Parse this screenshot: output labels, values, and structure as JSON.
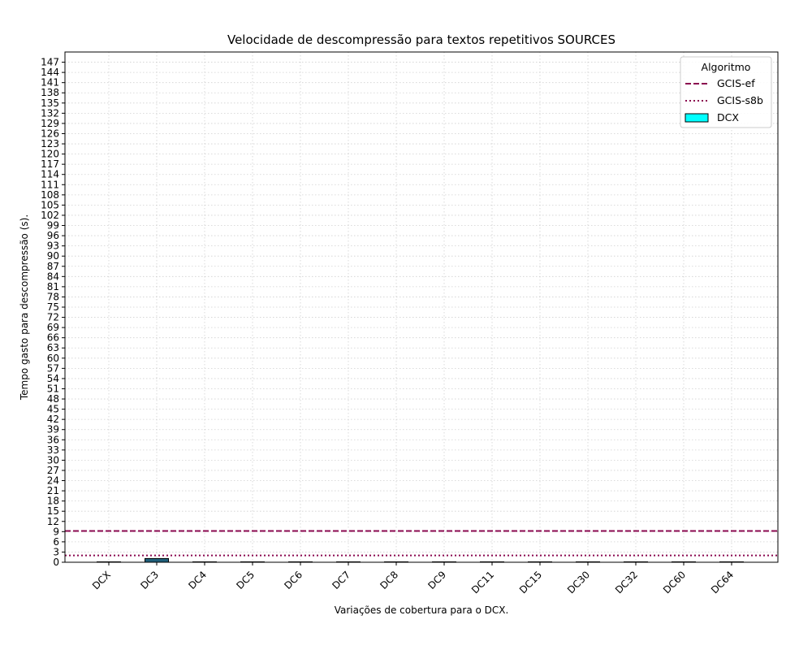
{
  "chart_data": {
    "type": "bar",
    "title": "Velocidade de descompressão para textos repetitivos SOURCES",
    "xlabel": "Variações de cobertura para o DCX.",
    "ylabel": "Tempo gasto para descompressão (s).",
    "categories": [
      "DCX",
      "DC3",
      "DC4",
      "DC5",
      "DC6",
      "DC7",
      "DC8",
      "DC9",
      "DC11",
      "DC15",
      "DC30",
      "DC32",
      "DC60",
      "DC64"
    ],
    "series": [
      {
        "name": "DCX",
        "color": "#00ffff",
        "values": [
          0.05,
          1.1,
          0.05,
          0.05,
          0.05,
          0.05,
          0.05,
          0.05,
          0.05,
          0.05,
          0.05,
          0.05,
          0.05,
          0.05
        ]
      }
    ],
    "reference_lines": [
      {
        "name": "GCIS-ef",
        "value": 9.2,
        "color": "#8b0a50",
        "style": "dashed"
      },
      {
        "name": "GCIS-s8b",
        "value": 2.0,
        "color": "#8b0a50",
        "style": "dotted"
      }
    ],
    "ylim": [
      0,
      150
    ],
    "yticks": [
      0,
      3,
      6,
      9,
      12,
      15,
      18,
      21,
      24,
      27,
      30,
      33,
      36,
      39,
      42,
      45,
      48,
      51,
      54,
      57,
      60,
      63,
      66,
      69,
      72,
      75,
      78,
      81,
      84,
      87,
      90,
      93,
      96,
      99,
      102,
      105,
      108,
      111,
      114,
      117,
      120,
      123,
      126,
      129,
      132,
      135,
      138,
      141,
      144,
      147
    ],
    "grid": true,
    "legend": {
      "title": "Algoritmo",
      "placement": "top-right"
    }
  }
}
